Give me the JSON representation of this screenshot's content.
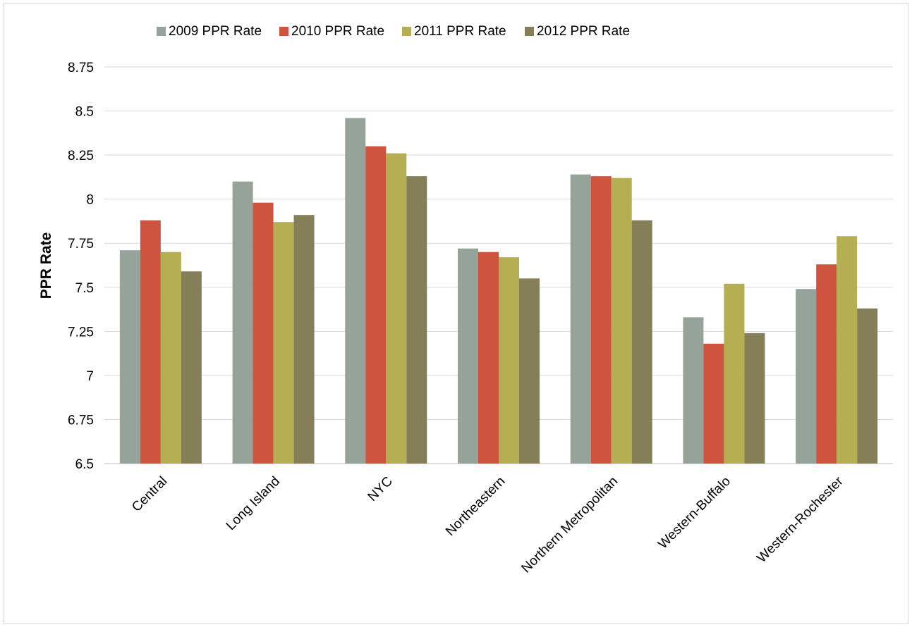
{
  "chart_data": {
    "type": "bar",
    "title": "",
    "xlabel": "",
    "ylabel": "PPR Rate",
    "ylim": [
      6.5,
      8.75
    ],
    "yticks": [
      "6.5",
      "6.75",
      "7",
      "7.25",
      "7.5",
      "7.75",
      "8",
      "8.25",
      "8.5",
      "8.75"
    ],
    "grid": true,
    "legend_position": "top",
    "categories": [
      "Central",
      "Long Island",
      "NYC",
      "Northeastern",
      "Northern Metropolitan",
      "Western-Buffalo",
      "Western-Rochester"
    ],
    "series": [
      {
        "name": "2009 PPR Rate",
        "color": "#95a39a",
        "values": [
          7.71,
          8.1,
          8.46,
          7.72,
          8.14,
          7.33,
          7.49
        ]
      },
      {
        "name": "2010 PPR Rate",
        "color": "#cf543f",
        "values": [
          7.88,
          7.98,
          8.3,
          7.7,
          8.13,
          7.18,
          7.63
        ]
      },
      {
        "name": "2011 PPR Rate",
        "color": "#b5ae52",
        "values": [
          7.7,
          7.87,
          8.26,
          7.67,
          8.12,
          7.52,
          7.79
        ]
      },
      {
        "name": "2012 PPR Rate",
        "color": "#847f57",
        "values": [
          7.59,
          7.91,
          8.13,
          7.55,
          7.88,
          7.24,
          7.38
        ]
      }
    ]
  }
}
